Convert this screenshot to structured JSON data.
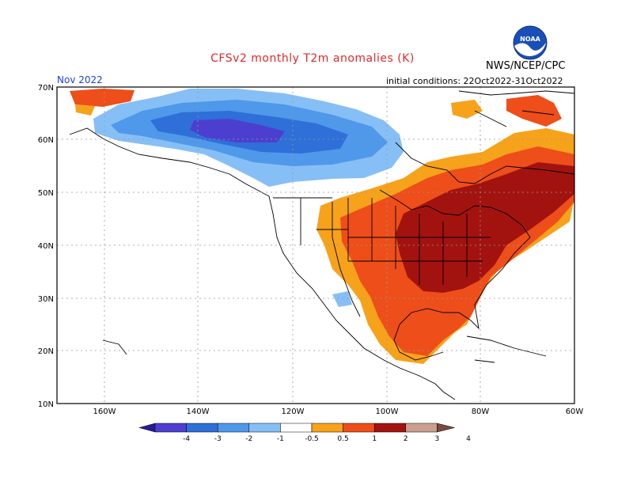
{
  "header": {
    "title": "CFSv2 monthly T2m anomalies (K)",
    "agency": "NWS/NCEP/CPC",
    "month": "Nov 2022",
    "initial_conditions": "initial conditions: 22Oct2022-31Oct2022",
    "logo_text": "NOAA"
  },
  "map": {
    "lat_labels": [
      "70N",
      "60N",
      "50N",
      "40N",
      "30N",
      "20N",
      "10N"
    ],
    "lon_labels": [
      "160W",
      "140W",
      "120W",
      "100W",
      "80W",
      "60W"
    ],
    "anomaly_regions": [
      {
        "name": "Alaska/western Canada cold",
        "anomaly": "-2 to -3 K"
      },
      {
        "name": "Eastern US / Canada warm",
        "anomaly": "+2 to +3 K"
      },
      {
        "name": "Central US / Mexico warm",
        "anomaly": "+1 to +2 K"
      }
    ]
  },
  "legend": {
    "labels": [
      "-4",
      "-3",
      "-2",
      "-1",
      "-0.5",
      "0.5",
      "1",
      "2",
      "3",
      "4"
    ],
    "colors": [
      "#2b1a9c",
      "#4c3fd0",
      "#2f6fd8",
      "#4f98ea",
      "#86bff5",
      "#ffffff",
      "#f7a21b",
      "#ee4e19",
      "#a21310",
      "#c9a08f",
      "#7a4a3e"
    ]
  }
}
